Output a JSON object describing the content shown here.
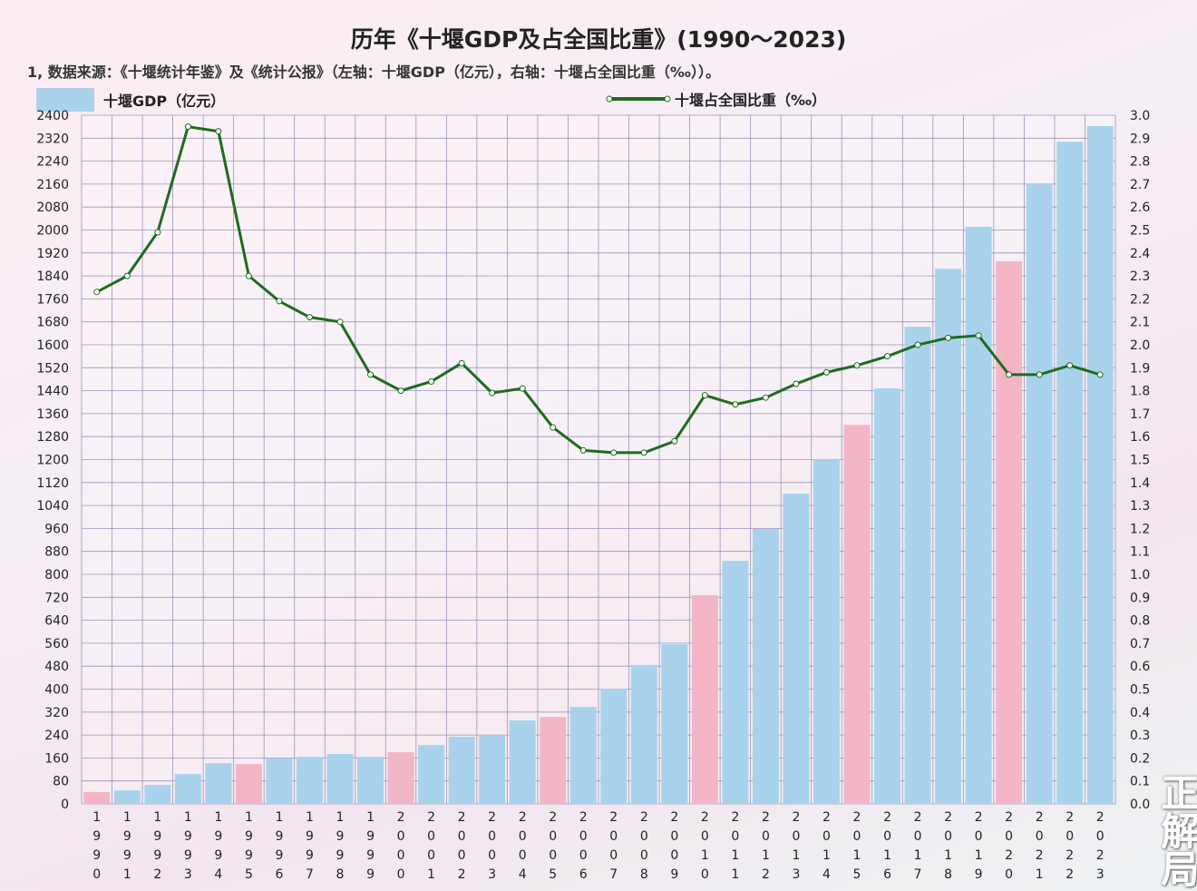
{
  "chart_data": {
    "type": "bar+line",
    "title": "历年《十堰GDP及占全国比重》(1990～2023)",
    "note": "1, 数据来源：《十堰统计年鉴》及《统计公报》（左轴：十堰GDP（亿元），右轴：十堰占全国比重（‰））。",
    "categories": [
      "1990",
      "1991",
      "1992",
      "1993",
      "1994",
      "1995",
      "1996",
      "1997",
      "1998",
      "1999",
      "2000",
      "2001",
      "2002",
      "2003",
      "2004",
      "2005",
      "2006",
      "2007",
      "2008",
      "2009",
      "2010",
      "2011",
      "2012",
      "2013",
      "2014",
      "2015",
      "2016",
      "2017",
      "2018",
      "2019",
      "2020",
      "2021",
      "2022",
      "2023"
    ],
    "series": [
      {
        "name": "十堰GDP（亿元）",
        "type": "bar",
        "axis": "left",
        "values": [
          41,
          47,
          66,
          104,
          142,
          139,
          158,
          164,
          174,
          164,
          180,
          205,
          234,
          237,
          291,
          303,
          338,
          401,
          484,
          556,
          727,
          847,
          958,
          1081,
          1201,
          1321,
          1448,
          1663,
          1865,
          2011,
          1891,
          2159,
          2308,
          2362
        ]
      },
      {
        "name": "十堰占全国比重（‰）",
        "type": "line",
        "axis": "right",
        "values": [
          2.23,
          2.3,
          2.49,
          2.95,
          2.93,
          2.3,
          2.19,
          2.12,
          2.1,
          1.87,
          1.8,
          1.84,
          1.92,
          1.79,
          1.81,
          1.64,
          1.54,
          1.53,
          1.53,
          1.58,
          1.78,
          1.74,
          1.77,
          1.83,
          1.88,
          1.91,
          1.95,
          2.0,
          2.03,
          2.04,
          1.87,
          1.87,
          1.91,
          1.87
        ]
      }
    ],
    "highlight_years": [
      "1990",
      "1995",
      "2000",
      "2005",
      "2010",
      "2015",
      "2020"
    ],
    "ylim_left": [
      0,
      2400
    ],
    "ytick_step_left": 80,
    "ylim_right": [
      0,
      3.0
    ],
    "ytick_step_right": 0.1,
    "grid": true,
    "legend": "top",
    "colors": {
      "bar": "#a9d3ec",
      "bar_highlight": "#f4b6c6",
      "line": "#1e6b1e",
      "grid": "#9a94b8"
    }
  },
  "watermark": "正解局"
}
